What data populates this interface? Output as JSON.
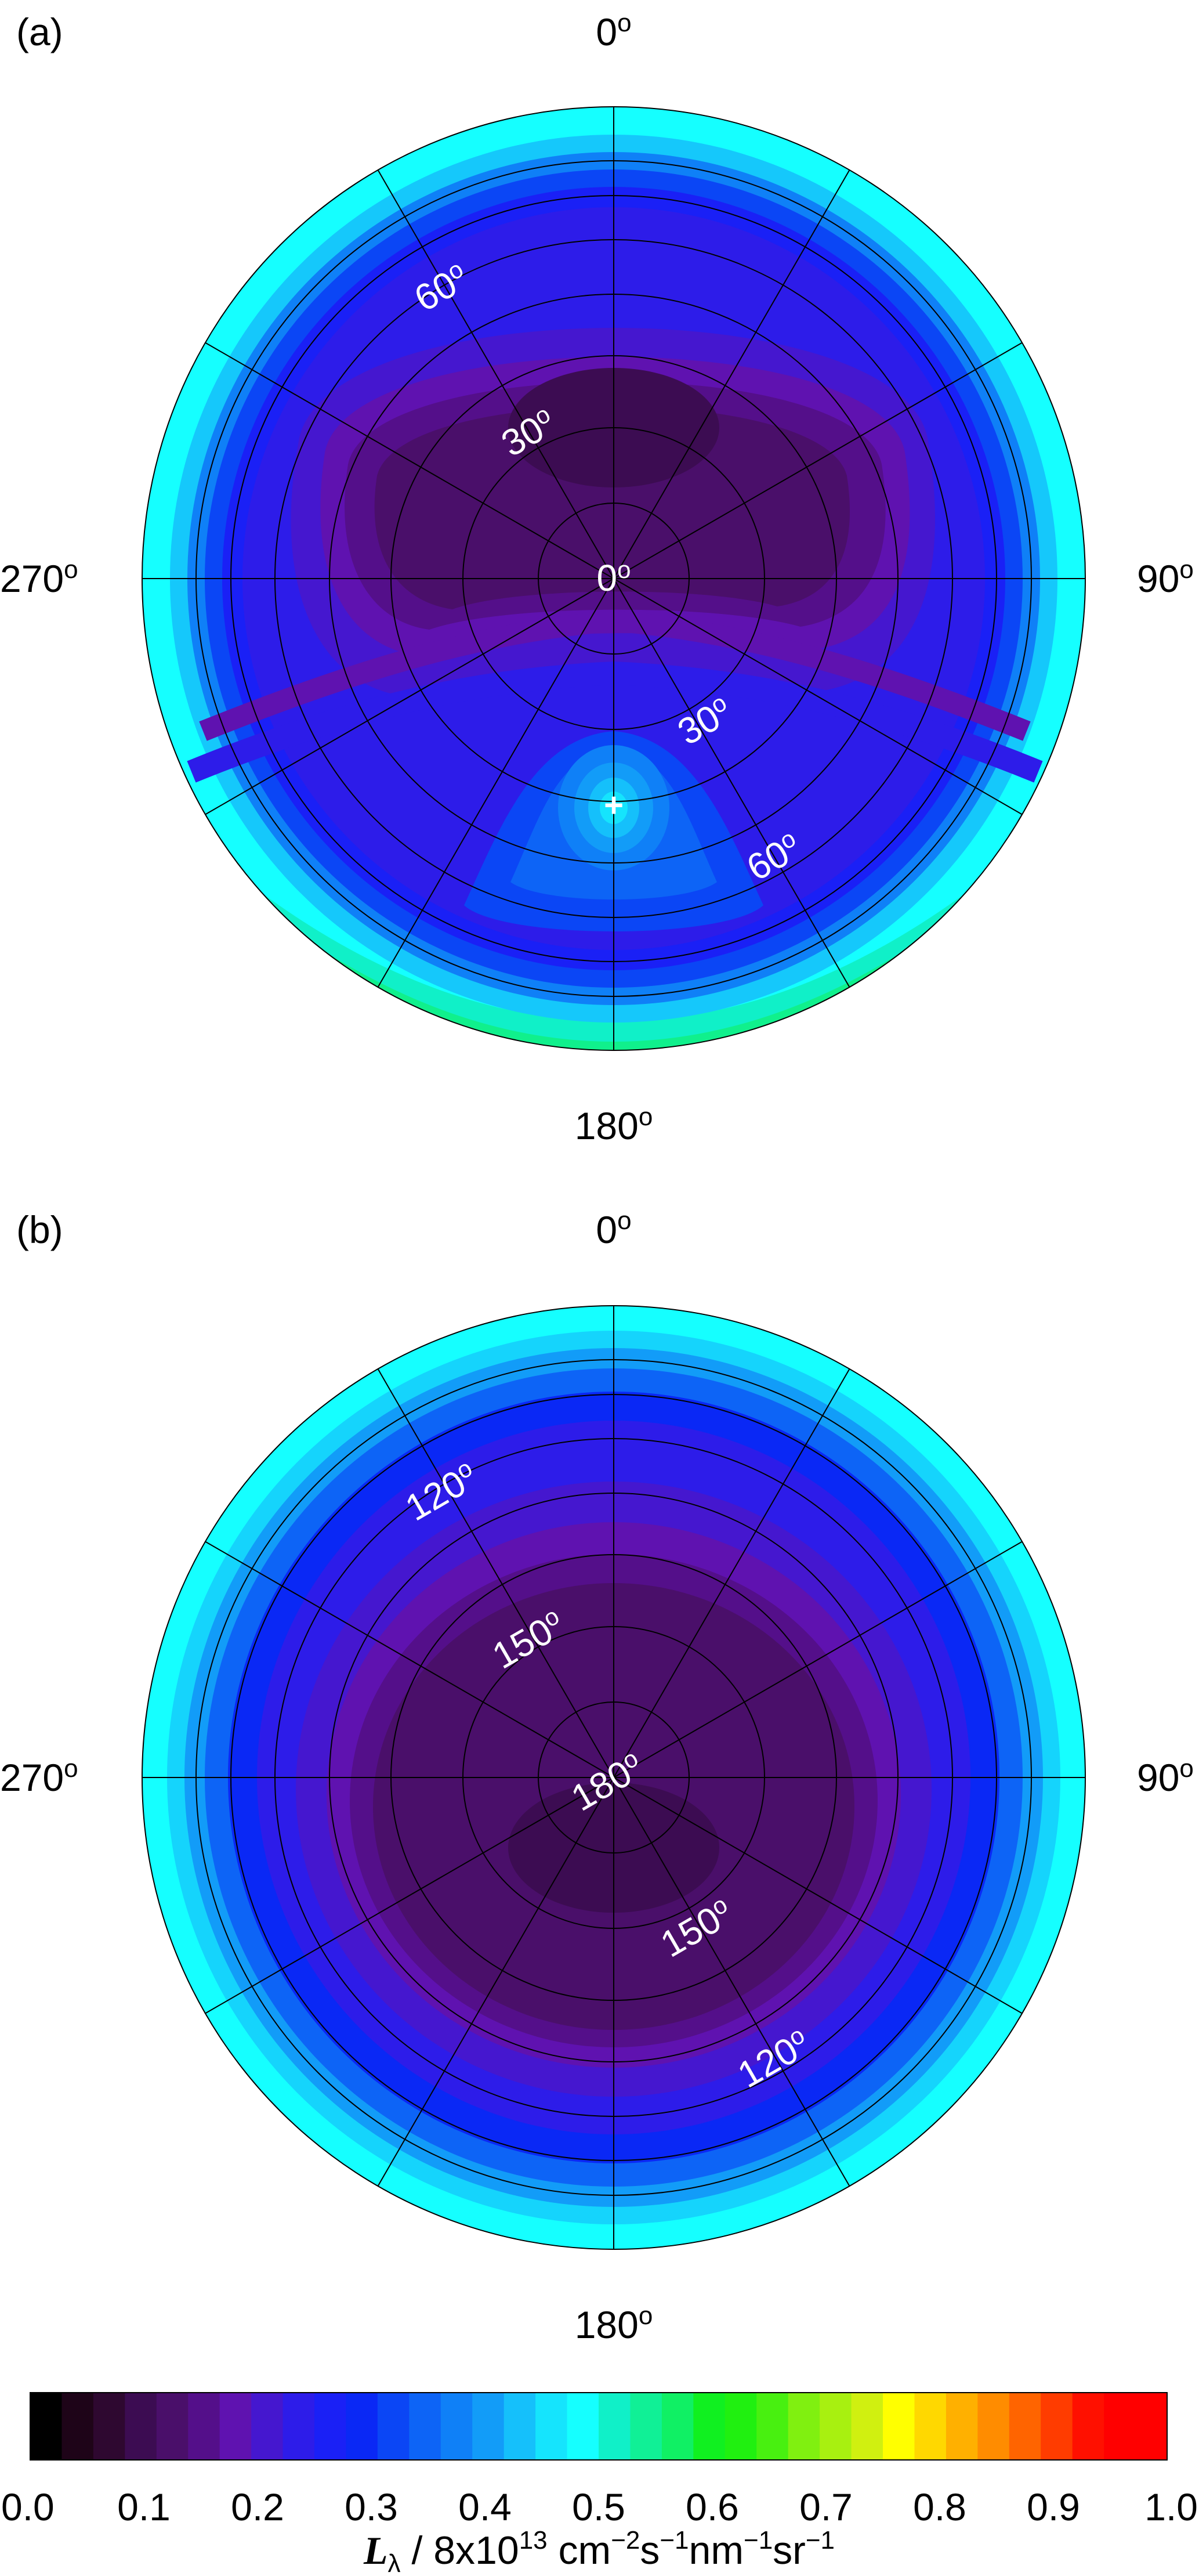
{
  "chart_data": [
    {
      "type": "heatmap",
      "panel_label": "(a)",
      "projection": "polar",
      "azimuth_labels": [
        "0",
        "90",
        "180",
        "270"
      ],
      "degree_mark": "o",
      "zenith_labels": [
        "0",
        "30",
        "60",
        "30",
        "60"
      ],
      "grid": true,
      "features": [
        {
          "description": "broad dark minimum",
          "azimuth_deg": 0,
          "zenith_deg": 30,
          "value": 0.05
        },
        {
          "description": "bright spot marked +",
          "azimuth_deg": 180,
          "zenith_deg": 45,
          "value": 0.45
        }
      ],
      "edge_values": {
        "north": 0.42,
        "south": 0.52
      }
    },
    {
      "type": "heatmap",
      "panel_label": "(b)",
      "projection": "polar",
      "azimuth_labels": [
        "0",
        "90",
        "180",
        "270"
      ],
      "degree_mark": "o",
      "zenith_labels": [
        "180",
        "150",
        "120",
        "150",
        "120"
      ],
      "grid": true,
      "features": [
        {
          "description": "dark minimum",
          "azimuth_deg": 180,
          "zenith_deg": 170,
          "value": 0.05
        }
      ],
      "edge_values": {
        "north": 0.42,
        "south": 0.42
      }
    }
  ],
  "colorbar": {
    "tick_labels": [
      "0.0",
      "0.1",
      "0.2",
      "0.3",
      "0.4",
      "0.5",
      "0.6",
      "0.7",
      "0.8",
      "0.9",
      "1.0"
    ],
    "range": [
      0,
      1
    ],
    "colors": [
      "#000000",
      "#1e0418",
      "#2e0830",
      "#3c0c52",
      "#4a0f6a",
      "#540f8a",
      "#5f12b0",
      "#4517cf",
      "#2d1ce9",
      "#1a20f6",
      "#0a28f5",
      "#0b46f5",
      "#0d64f6",
      "#0f80f7",
      "#129cf8",
      "#15c0fb",
      "#15e4fd",
      "#15ffff",
      "#10f0c8",
      "#10f096",
      "#10f064",
      "#10f020",
      "#20f010",
      "#48f010",
      "#80f010",
      "#a8f010",
      "#d0f010",
      "#ffff00",
      "#ffd800",
      "#ffb000",
      "#ff8c00",
      "#ff6400",
      "#ff3c00",
      "#ff1000",
      "#ff0000",
      "#ff0000"
    ],
    "label": {
      "symbol": "L",
      "subscript": "λ",
      "text_mid": " / 8x10",
      "exponent": "13",
      "units": [
        {
          "text": " cm",
          "sup": "−2"
        },
        {
          "text": "s",
          "sup": "−1"
        },
        {
          "text": "nm",
          "sup": "−1"
        },
        {
          "text": "sr",
          "sup": "−1"
        }
      ]
    }
  }
}
